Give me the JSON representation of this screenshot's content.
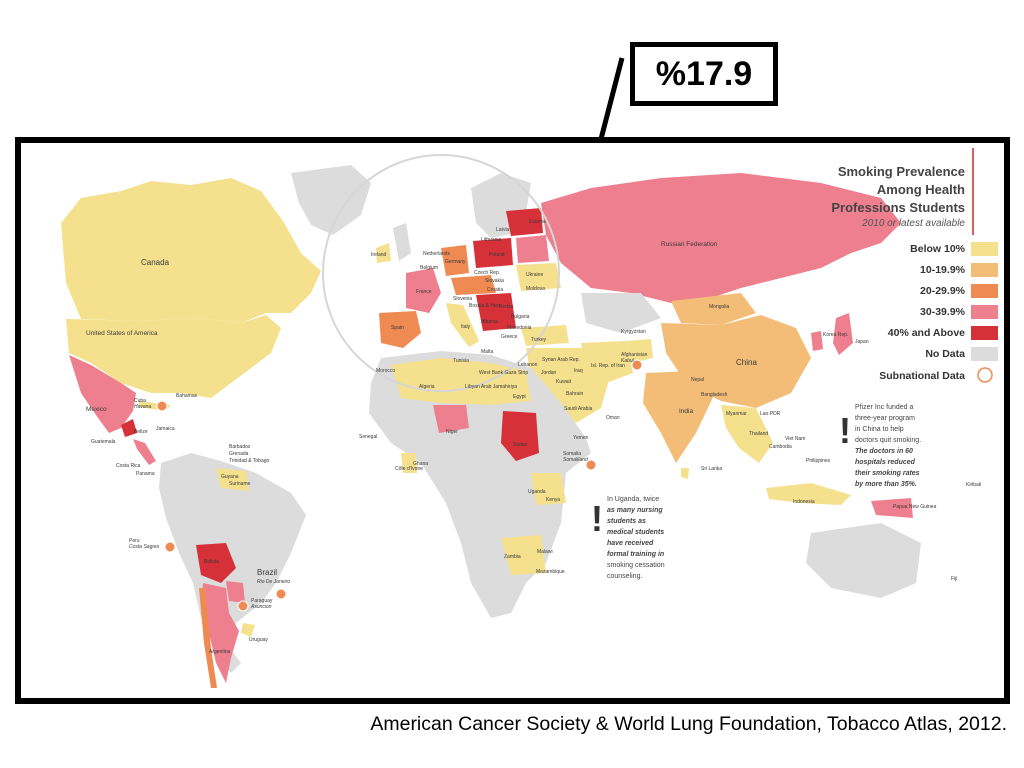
{
  "callout": {
    "value": "%17.9"
  },
  "legend": {
    "title_lines": [
      "Smoking Prevalence",
      "Among Health",
      "Professions Students"
    ],
    "subtitle": "2010 or latest available",
    "items": [
      {
        "label": "Below 10%",
        "color": "#f5e08e"
      },
      {
        "label": "10-19.9%",
        "color": "#f3bd78"
      },
      {
        "label": "20-29.9%",
        "color": "#ee8a52"
      },
      {
        "label": "30-39.9%",
        "color": "#ee7f8f"
      },
      {
        "label": "40% and Above",
        "color": "#d63039"
      },
      {
        "label": "No Data",
        "color": "#dcdcdc"
      },
      {
        "label": "Subnational Data",
        "color": "#f08a55"
      }
    ]
  },
  "countries": {
    "canada": "Canada",
    "usa": "United States of America",
    "mexico": "Mexico",
    "cuba": "Cuba",
    "havana": "Havana",
    "bahamas": "Bahamas",
    "belize": "Belize",
    "jamaica": "Jamaica",
    "guatemala": "Guatemala",
    "costa_rica": "Costa Rica",
    "panama": "Panama",
    "barbados": "Barbados",
    "grenada": "Grenada",
    "trinidad": "Trinidad & Tobago",
    "guyana": "Guyana",
    "suriname": "Suriname",
    "peru": "Peru",
    "costa_sagres": "Costa Sagres",
    "bolivia": "Bolivia",
    "brazil": "Brazil",
    "rio": "Rio De Janeiro",
    "paraguay": "Paraguay",
    "asuncion": "Asuncion",
    "uruguay": "Uruguay",
    "argentina": "Argentina",
    "ireland": "Ireland",
    "netherlands": "Netherlands",
    "belgium": "Belgium",
    "germany": "Germany",
    "czech": "Czech Rep.",
    "slovakia": "Slovakia",
    "poland": "Poland",
    "latvia": "Latvia",
    "lithuania": "Lithuania",
    "estonia": "Estonia",
    "ukraine": "Ukraine",
    "moldova": "Moldova",
    "france": "France",
    "slovenia": "Slovenia",
    "croatia": "Croatia",
    "bosnia": "Bosnia & Herz.",
    "serbia": "Serbia",
    "albania": "Albania",
    "macedonia": "Macedonia",
    "bulgaria": "Bulgaria",
    "greece": "Greece",
    "spain": "Spain",
    "italy": "Italy",
    "malta": "Malta",
    "turkey": "Turkey",
    "russia": "Russian Federation",
    "mongolia": "Mongolia",
    "china": "China",
    "korea": "Korea Rep.",
    "japan": "Japan",
    "kyrgyzstan": "Kyrgyzstan",
    "afghanistan": "Afghanistan",
    "kabul": "Kabul",
    "iran": "Isl. Rep. of Iran",
    "iraq": "Iraq",
    "syria": "Syrian Arab Rep.",
    "lebanon": "Lebanon",
    "jordan": "Jordan",
    "west_bank": "West Bank Gaza Strip",
    "kuwait": "Kuwait",
    "bahrain": "Bahrain",
    "saudi": "Saudi Arabia",
    "oman": "Oman",
    "yemen": "Yemen",
    "nepal": "Nepal",
    "bangladesh": "Bangladesh",
    "india": "India",
    "myanmar": "Myanmar",
    "laos": "Lao PDR",
    "thailand": "Thailand",
    "vietnam": "Viet Nam",
    "cambodia": "Cambodia",
    "philippines": "Philippines",
    "sri_lanka": "Sri Lanka",
    "indonesia": "Indonesia",
    "png": "Papua New Guinea",
    "kiribati": "Kiribati",
    "fiji": "Fiji",
    "morocco": "Morocco",
    "tunisia": "Tunisia",
    "algeria": "Algeria",
    "libya": "Libyan Arab Jamahiriya",
    "egypt": "Egypt",
    "senegal": "Senegal",
    "niger": "Niger",
    "ghana": "Ghana",
    "cote": "Côte d'Ivoire",
    "sudan": "Sudan",
    "somalia": "Somalia",
    "somaliland": "Somaliland",
    "uganda": "Uganda",
    "kenya": "Kenya",
    "zambia": "Zambia",
    "malawi": "Malawi",
    "mozambique": "Mozambique"
  },
  "notes": {
    "china_note": "Pfizer Inc funded a three-year program in China to help doctors quit smoking. The doctors in 60 hospitals reduced their smoking rates by more than 35%.",
    "china_note_lines": [
      "Pfizer Inc funded a",
      "three-year program",
      "in China to help",
      "doctors quit smoking.",
      "The doctors in 60",
      "hospitals reduced",
      "their smoking rates",
      "by more than 35%."
    ],
    "uganda_note": "In Uganda, twice as many nursing students as medical students have received formal training in smoking cessation counseling.",
    "uganda_note_lines": [
      "In Uganda, twice",
      "as many nursing",
      "students as",
      "medical students",
      "have received",
      "formal training in",
      "smoking cessation",
      "counseling."
    ]
  },
  "source": "American Cancer Society & World Lung Foundation, Tobacco Atlas, 2012."
}
